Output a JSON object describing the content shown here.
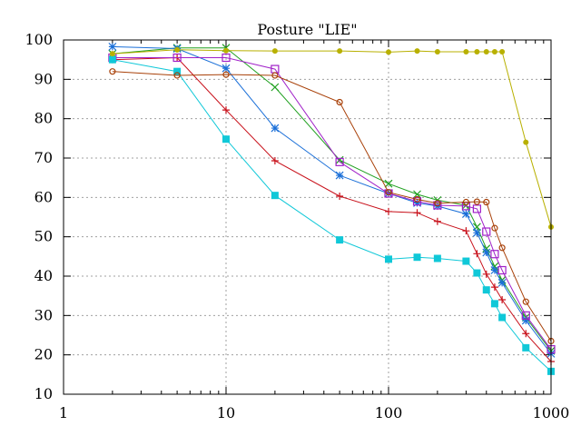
{
  "chart_data": {
    "type": "line",
    "title": "Posture \"LIE\"",
    "xlabel": "",
    "ylabel": "",
    "xscale": "log",
    "xlim": [
      1,
      1000
    ],
    "ylim": [
      10,
      100
    ],
    "grid": true,
    "legend": "none",
    "x_ticks": [
      1,
      10,
      100,
      1000
    ],
    "x_tick_labels": [
      "1",
      "10",
      "100",
      "1000"
    ],
    "y_ticks": [
      10,
      20,
      30,
      40,
      50,
      60,
      70,
      80,
      90,
      100
    ],
    "y_tick_labels": [
      "10",
      "20",
      "30",
      "40",
      "50",
      "60",
      "70",
      "80",
      "90",
      "100"
    ],
    "series": [
      {
        "color": "#c8101a",
        "marker": "plus",
        "x": [
          2,
          5,
          10,
          20,
          50,
          100,
          150,
          200,
          300,
          350,
          400,
          450,
          500,
          700,
          1000
        ],
        "y": [
          95,
          95.5,
          82.2,
          69.3,
          60.3,
          56.4,
          56.1,
          53.9,
          51.5,
          45.7,
          40.5,
          37.2,
          34.0,
          25.4,
          18.3
        ]
      },
      {
        "color": "#20a020",
        "marker": "x",
        "x": [
          2,
          5,
          10,
          20,
          50,
          100,
          150,
          200,
          300,
          350,
          400,
          450,
          500,
          700,
          1000
        ],
        "y": [
          96.5,
          98.0,
          98.0,
          88.0,
          69.5,
          63.5,
          60.8,
          59.3,
          58.0,
          52.5,
          47.0,
          42.5,
          39.0,
          29.5,
          21.0
        ]
      },
      {
        "color": "#1a6fd8",
        "marker": "asterisk",
        "x": [
          2,
          5,
          10,
          20,
          50,
          100,
          150,
          200,
          300,
          350,
          400,
          450,
          500,
          700,
          1000
        ],
        "y": [
          98.3,
          97.8,
          92.8,
          77.6,
          65.6,
          61.0,
          58.6,
          57.8,
          55.8,
          51.0,
          46.0,
          41.5,
          38.3,
          28.7,
          20.3
        ]
      },
      {
        "color": "#a020c8",
        "marker": "square-open",
        "x": [
          2,
          5,
          10,
          20,
          50,
          100,
          150,
          200,
          300,
          350,
          400,
          450,
          500,
          700,
          1000
        ],
        "y": [
          95.5,
          95.5,
          95.5,
          92.6,
          69.0,
          61.0,
          59.0,
          58.0,
          57.8,
          57.1,
          51.3,
          45.6,
          41.5,
          30.0,
          21.4
        ]
      },
      {
        "color": "#10c8d8",
        "marker": "square-filled",
        "x": [
          2,
          5,
          10,
          20,
          50,
          100,
          150,
          200,
          300,
          350,
          400,
          450,
          500,
          700,
          1000
        ],
        "y": [
          95.0,
          92.0,
          74.8,
          60.5,
          49.2,
          44.3,
          44.8,
          44.5,
          43.8,
          40.8,
          36.5,
          33.0,
          29.5,
          21.8,
          15.8
        ]
      },
      {
        "color": "#a84008",
        "marker": "circle-open",
        "x": [
          2,
          5,
          10,
          20,
          50,
          100,
          150,
          200,
          300,
          350,
          400,
          450,
          500,
          700,
          1000
        ],
        "y": [
          92.0,
          91.0,
          91.2,
          91.0,
          84.2,
          61.3,
          59.5,
          58.5,
          58.8,
          58.9,
          58.8,
          52.2,
          47.2,
          33.5,
          23.5
        ]
      },
      {
        "color": "#b8b000",
        "marker": "circle-filled",
        "x": [
          2,
          5,
          10,
          20,
          50,
          100,
          150,
          200,
          300,
          350,
          400,
          450,
          500,
          700,
          1000
        ],
        "y": [
          96.5,
          97.5,
          97.3,
          97.2,
          97.2,
          96.9,
          97.2,
          97.0,
          97.0,
          97.0,
          97.0,
          97.0,
          97.0,
          74.0,
          52.5
        ]
      }
    ]
  }
}
